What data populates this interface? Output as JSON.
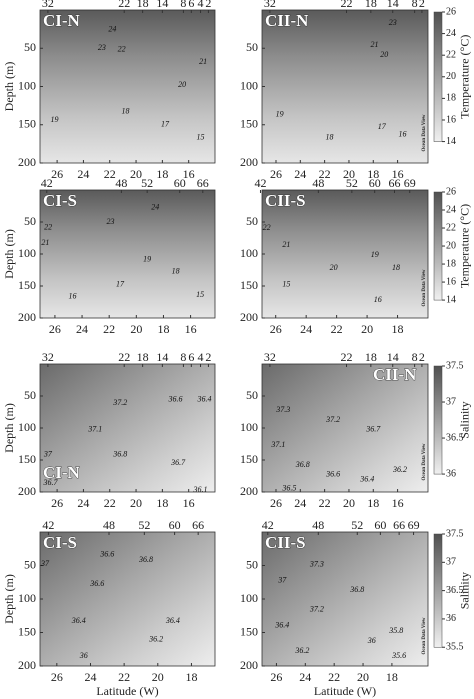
{
  "chart_data": [
    {
      "type": "contour",
      "title": "CI-N",
      "title_corner": "top-left",
      "ylabel": "Depth (m)",
      "xlim": [
        27.3,
        14.0
      ],
      "xticks": [
        26,
        24,
        22,
        20,
        18,
        16
      ],
      "ylim": [
        0,
        200
      ],
      "yticks": [
        50,
        100,
        150,
        200
      ],
      "x2ticks": [
        {
          "value": 26.7,
          "label": "32"
        },
        {
          "value": 20.9,
          "label": "22"
        },
        {
          "value": 19.5,
          "label": "18"
        },
        {
          "value": 18.0,
          "label": "14"
        },
        {
          "value": 16.4,
          "label": "8"
        },
        {
          "value": 15.8,
          "label": "6"
        },
        {
          "value": 15.1,
          "label": "4"
        },
        {
          "value": 14.5,
          "label": "2"
        }
      ],
      "contour_labels": {
        "x": [
          21.8,
          22.6,
          21.1,
          14.9,
          16.5,
          20.8,
          17.8,
          26.2,
          15.1
        ],
        "y": [
          26,
          50,
          52,
          68,
          98,
          133,
          150,
          144,
          167
        ],
        "values": [
          24,
          23,
          22,
          21,
          20,
          18,
          17,
          19,
          15
        ]
      }
    },
    {
      "type": "contour",
      "title": "CII-N",
      "title_corner": "top-left",
      "xlim": [
        27.15,
        13.5
      ],
      "xticks": [
        26,
        24,
        22,
        20,
        18,
        16
      ],
      "ylim": [
        0,
        200
      ],
      "yticks": [
        50,
        100,
        150,
        200
      ],
      "x2ticks": [
        {
          "value": 26.5,
          "label": "32"
        },
        {
          "value": 20.2,
          "label": "22"
        },
        {
          "value": 18.2,
          "label": "18"
        },
        {
          "value": 16.4,
          "label": "14"
        },
        {
          "value": 14.6,
          "label": "8"
        },
        {
          "value": 14.0,
          "label": "2"
        }
      ],
      "contour_labels": {
        "x": [
          16.4,
          17.9,
          17.1,
          25.7,
          21.6,
          17.3,
          15.6
        ],
        "y": [
          17,
          46,
          59,
          137,
          167,
          153,
          163
        ],
        "values": [
          23,
          21,
          20,
          19,
          18,
          17,
          16
        ]
      },
      "clim": [
        14,
        26
      ],
      "cticks": [
        14,
        16,
        18,
        20,
        22,
        24,
        26
      ],
      "clabel": "Temperature (°C)",
      "note": "Ocean Data View"
    },
    {
      "type": "contour",
      "title": "CI-S",
      "title_corner": "top-left",
      "ylabel": "Depth (m)",
      "xlim": [
        27.1,
        14.2
      ],
      "xticks": [
        26,
        24,
        22,
        20,
        18,
        16
      ],
      "ylim": [
        0,
        200
      ],
      "yticks": [
        50,
        100,
        150,
        200
      ],
      "x2ticks": [
        {
          "value": 26.6,
          "label": "42"
        },
        {
          "value": 21.1,
          "label": "48"
        },
        {
          "value": 19.2,
          "label": "52"
        },
        {
          "value": 16.8,
          "label": "60"
        },
        {
          "value": 15.1,
          "label": "66"
        }
      ],
      "contour_labels": {
        "x": [
          26.5,
          26.7,
          18.6,
          21.9,
          19.2,
          17.1,
          21.2,
          24.7,
          15.3
        ],
        "y": [
          59,
          83,
          28,
          50,
          109,
          128,
          148,
          167,
          164
        ],
        "values": [
          22,
          21,
          24,
          23,
          19,
          18,
          17,
          16,
          15
        ]
      }
    },
    {
      "type": "contour",
      "title": "CII-S",
      "title_corner": "top-left",
      "xlim": [
        26.9,
        16.0
      ],
      "xticks": [
        26,
        24,
        22,
        20,
        18
      ],
      "ylim": [
        0,
        200
      ],
      "yticks": [
        50,
        100,
        150,
        200
      ],
      "x2ticks": [
        {
          "value": 27.0,
          "label": "42"
        },
        {
          "value": 23.2,
          "label": "48"
        },
        {
          "value": 21.0,
          "label": "52"
        },
        {
          "value": 19.5,
          "label": "60"
        },
        {
          "value": 18.2,
          "label": "66"
        },
        {
          "value": 17.2,
          "label": "69"
        }
      ],
      "contour_labels": {
        "x": [
          26.6,
          25.3,
          22.2,
          19.5,
          18.1,
          19.3,
          25.3
        ],
        "y": [
          60,
          86,
          122,
          102,
          122,
          172,
          148
        ],
        "values": [
          22,
          21,
          20,
          19,
          18,
          16,
          15
        ]
      },
      "clim": [
        14,
        26
      ],
      "cticks": [
        14,
        16,
        18,
        20,
        22,
        24,
        26
      ],
      "clabel": "Temperature (°C)",
      "note": "Ocean Data View"
    },
    {
      "type": "contour",
      "title": "CI-N",
      "title_corner": "bottom-left",
      "ylabel": "Depth (m)",
      "xlim": [
        27.3,
        14.0
      ],
      "xticks": [
        26,
        24,
        22,
        20,
        18,
        16
      ],
      "ylim": [
        0,
        200
      ],
      "yticks": [
        50,
        100,
        150,
        200
      ],
      "x2ticks": [
        {
          "value": 26.7,
          "label": "32"
        },
        {
          "value": 20.9,
          "label": "22"
        },
        {
          "value": 19.5,
          "label": "18"
        },
        {
          "value": 18.0,
          "label": "14"
        },
        {
          "value": 16.4,
          "label": "8"
        },
        {
          "value": 15.8,
          "label": "6"
        },
        {
          "value": 15.1,
          "label": "4"
        },
        {
          "value": 14.5,
          "label": "2"
        }
      ],
      "contour_labels": {
        "x": [
          21.2,
          23.1,
          26.7,
          21.2,
          16.8,
          17.0,
          14.8,
          26.5,
          15.1
        ],
        "y": [
          61,
          103,
          142,
          142,
          155,
          56,
          56,
          186,
          197
        ],
        "values": [
          37.2,
          37.1,
          37,
          36.8,
          36.7,
          36.6,
          36.4,
          36.7,
          36.1
        ]
      }
    },
    {
      "type": "contour",
      "title": "CII-N",
      "title_corner": "top-right",
      "xlim": [
        27.15,
        13.5
      ],
      "xticks": [
        26,
        24,
        22,
        20,
        18,
        16
      ],
      "ylim": [
        0,
        200
      ],
      "yticks": [
        50,
        100,
        150,
        200
      ],
      "x2ticks": [
        {
          "value": 26.5,
          "label": "32"
        },
        {
          "value": 20.2,
          "label": "22"
        },
        {
          "value": 18.2,
          "label": "18"
        },
        {
          "value": 16.4,
          "label": "14"
        },
        {
          "value": 14.6,
          "label": "8"
        },
        {
          "value": 14.0,
          "label": "2"
        }
      ],
      "contour_labels": {
        "x": [
          25.4,
          21.3,
          25.8,
          23.8,
          18.0,
          21.3,
          18.5,
          15.8,
          24.9
        ],
        "y": [
          72,
          88,
          127,
          158,
          103,
          173,
          181,
          166,
          195
        ],
        "values": [
          37.3,
          37.2,
          37.1,
          36.8,
          36.7,
          36.6,
          36.4,
          36.2,
          36.5
        ]
      },
      "clim": [
        36,
        37.5
      ],
      "cticks": [
        36,
        36.5,
        37,
        37.5
      ],
      "clabel": "Salinity",
      "note": "Ocean Data View"
    },
    {
      "type": "contour",
      "title": "CI-S",
      "title_corner": "top-left",
      "ylabel": "Depth (m)",
      "xlabel": "Latitude (W)",
      "xlim": [
        27.0,
        16.6
      ],
      "xticks": [
        26,
        24,
        22,
        20,
        18
      ],
      "ylim": [
        0,
        200
      ],
      "yticks": [
        50,
        100,
        150,
        200
      ],
      "x2ticks": [
        {
          "value": 26.5,
          "label": "42"
        },
        {
          "value": 22.9,
          "label": "48"
        },
        {
          "value": 20.8,
          "label": "52"
        },
        {
          "value": 19.0,
          "label": "60"
        },
        {
          "value": 17.6,
          "label": "66"
        }
      ],
      "contour_labels": {
        "x": [
          23.0,
          20.7,
          23.6,
          24.7,
          24.4,
          20.1,
          19.1,
          26.7
        ],
        "y": [
          34,
          42,
          78,
          133,
          185,
          161,
          133,
          48
        ],
        "values": [
          36.6,
          36.8,
          36.6,
          36.4,
          36,
          36.2,
          36.4,
          37
        ]
      }
    },
    {
      "type": "contour",
      "title": "CII-S",
      "title_corner": "top-left",
      "xlabel": "Latitude (W)",
      "xlim": [
        27.0,
        15.5
      ],
      "xticks": [
        26,
        24,
        22,
        20,
        18
      ],
      "ylim": [
        0,
        200
      ],
      "yticks": [
        50,
        100,
        150,
        200
      ],
      "x2ticks": [
        {
          "value": 26.6,
          "label": "42"
        },
        {
          "value": 23.1,
          "label": "48"
        },
        {
          "value": 20.4,
          "label": "52"
        },
        {
          "value": 18.8,
          "label": "60"
        },
        {
          "value": 17.5,
          "label": "66"
        },
        {
          "value": 16.5,
          "label": "69"
        }
      ],
      "contour_labels": {
        "x": [
          23.2,
          25.6,
          23.2,
          20.4,
          25.6,
          24.2,
          17.7,
          17.5,
          19.4
        ],
        "y": [
          49,
          73,
          116,
          87,
          140,
          178,
          148,
          185,
          163
        ],
        "values": [
          37.3,
          37,
          37.2,
          36.8,
          36.4,
          36.2,
          35.8,
          35.6,
          36
        ]
      },
      "clim": [
        35.5,
        37.5
      ],
      "cticks": [
        35.5,
        36,
        36.5,
        37,
        37.5
      ],
      "clabel": "Salinity",
      "note": "Ocean Data View"
    }
  ]
}
